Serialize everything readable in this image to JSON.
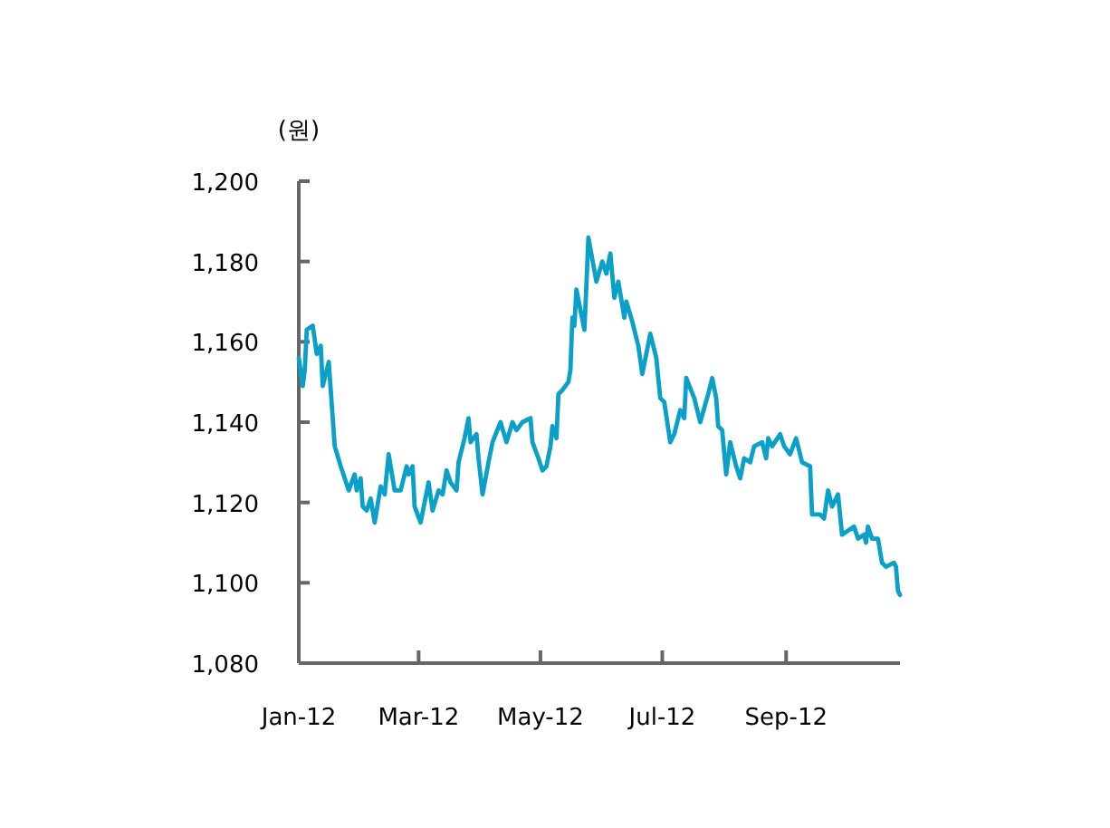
{
  "chart_data": {
    "type": "line",
    "ylabel": "(원)",
    "x": [
      "2012-01-01",
      "2012-01-03",
      "2012-01-04",
      "2012-01-05",
      "2012-01-08",
      "2012-01-10",
      "2012-01-12",
      "2012-01-13",
      "2012-01-16",
      "2012-01-18",
      "2012-01-19",
      "2012-01-22",
      "2012-01-26",
      "2012-01-29",
      "2012-01-30",
      "2012-02-01",
      "2012-02-02",
      "2012-02-04",
      "2012-02-06",
      "2012-02-08",
      "2012-02-11",
      "2012-02-13",
      "2012-02-15",
      "2012-02-18",
      "2012-02-21",
      "2012-02-24",
      "2012-02-25",
      "2012-02-27",
      "2012-02-28",
      "2012-03-02",
      "2012-03-06",
      "2012-03-08",
      "2012-03-11",
      "2012-03-13",
      "2012-03-15",
      "2012-03-17",
      "2012-03-20",
      "2012-03-21",
      "2012-03-24",
      "2012-03-26",
      "2012-03-27",
      "2012-03-30",
      "2012-03-31",
      "2012-04-02",
      "2012-04-05",
      "2012-04-07",
      "2012-04-11",
      "2012-04-14",
      "2012-04-17",
      "2012-04-19",
      "2012-04-22",
      "2012-04-26",
      "2012-04-27",
      "2012-04-30",
      "2012-05-02",
      "2012-05-04",
      "2012-05-06",
      "2012-05-07",
      "2012-05-09",
      "2012-05-10",
      "2012-05-12",
      "2012-05-15",
      "2012-05-16",
      "2012-05-17",
      "2012-05-18",
      "2012-05-19",
      "2012-05-23",
      "2012-05-24",
      "2012-05-25",
      "2012-05-29",
      "2012-06-01",
      "2012-06-03",
      "2012-06-05",
      "2012-06-07",
      "2012-06-09",
      "2012-06-12",
      "2012-06-13",
      "2012-06-16",
      "2012-06-19",
      "2012-06-21",
      "2012-06-25",
      "2012-06-28",
      "2012-06-30",
      "2012-07-02",
      "2012-07-05",
      "2012-07-07",
      "2012-07-10",
      "2012-07-12",
      "2012-07-13",
      "2012-07-17",
      "2012-07-20",
      "2012-07-24",
      "2012-07-26",
      "2012-07-28",
      "2012-07-29",
      "2012-07-31",
      "2012-08-02",
      "2012-08-04",
      "2012-08-07",
      "2012-08-09",
      "2012-08-11",
      "2012-08-14",
      "2012-08-16",
      "2012-08-20",
      "2012-08-22",
      "2012-08-23",
      "2012-08-25",
      "2012-08-29",
      "2012-08-31",
      "2012-09-03",
      "2012-09-06",
      "2012-09-09",
      "2012-09-13",
      "2012-09-14",
      "2012-09-18",
      "2012-09-20",
      "2012-09-22",
      "2012-09-24",
      "2012-09-27",
      "2012-09-29",
      "2012-10-05",
      "2012-10-07",
      "2012-10-10",
      "2012-10-11",
      "2012-10-12",
      "2012-10-14",
      "2012-10-17",
      "2012-10-19",
      "2012-10-21",
      "2012-10-25",
      "2012-10-26",
      "2012-10-27",
      "2012-10-28"
    ],
    "series": [
      {
        "color": "#0aa0c8",
        "values": [
          1156,
          1149,
          1153,
          1163,
          1164,
          1157,
          1159,
          1149,
          1155,
          1141,
          1134,
          1129,
          1123,
          1127,
          1123,
          1126,
          1119,
          1118,
          1121,
          1115,
          1124,
          1122,
          1132,
          1123,
          1123,
          1129,
          1127,
          1129,
          1119,
          1115,
          1125,
          1118,
          1123,
          1122,
          1128,
          1125,
          1123,
          1130,
          1136,
          1141,
          1135,
          1137,
          1131,
          1122,
          1130,
          1135,
          1140,
          1135,
          1140,
          1138,
          1140,
          1141,
          1135,
          1131,
          1128,
          1129,
          1134,
          1139,
          1136,
          1147,
          1148,
          1150,
          1153,
          1166,
          1164,
          1173,
          1163,
          1174,
          1186,
          1175,
          1180,
          1177,
          1182,
          1171,
          1175,
          1166,
          1170,
          1165,
          1159,
          1152,
          1162,
          1156,
          1146,
          1145,
          1135,
          1137,
          1143,
          1141,
          1151,
          1146,
          1140,
          1147,
          1151,
          1146,
          1139,
          1138,
          1127,
          1135,
          1129,
          1126,
          1131,
          1130,
          1134,
          1135,
          1131,
          1136,
          1134,
          1137,
          1134,
          1132,
          1136,
          1130,
          1129,
          1117,
          1117,
          1116,
          1123,
          1119,
          1122,
          1112,
          1114,
          1111,
          1112,
          1110,
          1114,
          1111,
          1111,
          1105,
          1104,
          1105,
          1104,
          1098,
          1097
        ]
      }
    ],
    "xlim": [
      "2012-01-01",
      "2012-10-28"
    ],
    "xticks": [
      {
        "value": "2012-01-01",
        "label": "Jan-12"
      },
      {
        "value": "2012-03-01",
        "label": "Mar-12"
      },
      {
        "value": "2012-05-01",
        "label": "May-12"
      },
      {
        "value": "2012-07-01",
        "label": "Jul-12"
      },
      {
        "value": "2012-09-01",
        "label": "Sep-12"
      }
    ],
    "ylim": [
      1080,
      1200
    ],
    "yticks": [
      {
        "value": 1080,
        "label": "1,080"
      },
      {
        "value": 1100,
        "label": "1,100"
      },
      {
        "value": 1120,
        "label": "1,120"
      },
      {
        "value": 1140,
        "label": "1,140"
      },
      {
        "value": 1160,
        "label": "1,160"
      },
      {
        "value": 1180,
        "label": "1,180"
      },
      {
        "value": 1200,
        "label": "1,200"
      }
    ],
    "grid": false,
    "marker": "none",
    "line_style": "solid"
  }
}
